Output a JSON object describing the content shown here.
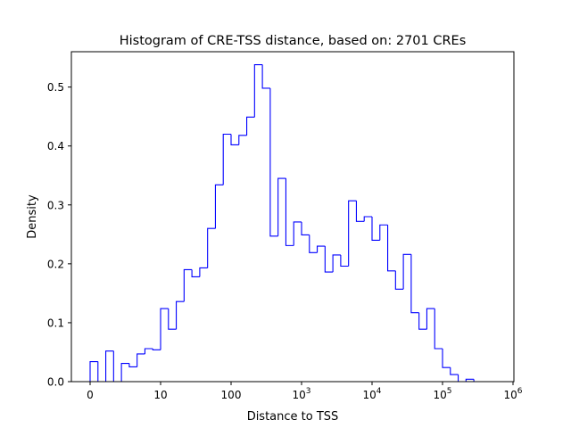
{
  "chart_data": {
    "type": "step-histogram",
    "title": "Histogram of CRE-TSS distance, based on: 2701 CREs",
    "xlabel": "Distance to TSS",
    "ylabel": "Density",
    "x_ticks": [
      {
        "label": "0",
        "base": "0",
        "exp": ""
      },
      {
        "label": "10",
        "base": "10",
        "exp": ""
      },
      {
        "label": "100",
        "base": "100",
        "exp": ""
      },
      {
        "label": "10^3",
        "base": "10",
        "exp": "3"
      },
      {
        "label": "10^4",
        "base": "10",
        "exp": "4"
      },
      {
        "label": "10^5",
        "base": "10",
        "exp": "5"
      },
      {
        "label": "10^6",
        "base": "10",
        "exp": "6"
      }
    ],
    "y_ticks": [
      "0.0",
      "0.1",
      "0.2",
      "0.3",
      "0.4",
      "0.5"
    ],
    "ylim": [
      0,
      0.56
    ],
    "x_axis_note": "symlog-like scale: 0 to 1e6 across 6 decades",
    "bin_edges_decades": [
      0.0,
      0.1111,
      0.2222,
      0.3333,
      0.4444,
      0.5556,
      0.6667,
      0.7778,
      0.8889,
      1.0,
      1.1111,
      1.2222,
      1.3333,
      1.4444,
      1.5556,
      1.6667,
      1.7778,
      1.8889,
      2.0,
      2.1111,
      2.2222,
      2.3333,
      2.4444,
      2.5556,
      2.6667,
      2.7778,
      2.8889,
      3.0,
      3.1111,
      3.2222,
      3.3333,
      3.4444,
      3.5556,
      3.6667,
      3.7778,
      3.8889,
      4.0,
      4.1111,
      4.2222,
      4.3333,
      4.4444,
      4.5556,
      4.6667,
      4.7778,
      4.8889,
      5.0,
      5.1111,
      5.2222,
      5.3333,
      5.4444,
      5.5556
    ],
    "densities": [
      0.034,
      0.0,
      0.052,
      0.0,
      0.031,
      0.025,
      0.047,
      0.056,
      0.054,
      0.124,
      0.089,
      0.136,
      0.19,
      0.178,
      0.193,
      0.26,
      0.334,
      0.42,
      0.402,
      0.418,
      0.449,
      0.538,
      0.498,
      0.247,
      0.345,
      0.231,
      0.271,
      0.249,
      0.219,
      0.23,
      0.186,
      0.215,
      0.196,
      0.307,
      0.272,
      0.28,
      0.24,
      0.266,
      0.188,
      0.157,
      0.216,
      0.117,
      0.089,
      0.124,
      0.056,
      0.024,
      0.012,
      0.0,
      0.004,
      0.0
    ],
    "line_color": "#0000ff",
    "grid": false,
    "legend": "none"
  }
}
